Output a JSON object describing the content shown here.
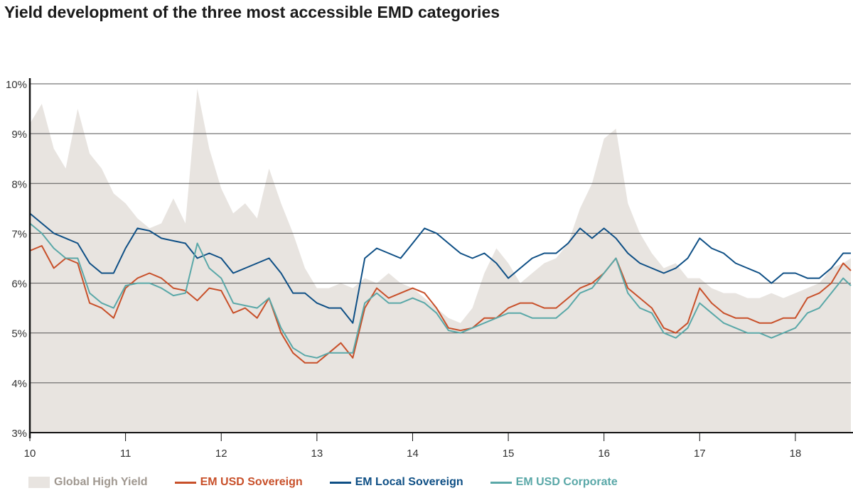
{
  "chart_data": {
    "type": "line",
    "title": "Yield development of the three most accessible EMD categories",
    "xlabel": "",
    "ylabel": "",
    "xlim": [
      10,
      18.58
    ],
    "ylim": [
      3,
      10
    ],
    "x_ticks": [
      "10",
      "11",
      "12",
      "13",
      "14",
      "15",
      "16",
      "17",
      "18"
    ],
    "y_ticks": [
      "3%",
      "4%",
      "5%",
      "6%",
      "7%",
      "8%",
      "9%",
      "10%"
    ],
    "grid": "horizontal",
    "legend_placement": "bottom",
    "x": [
      10,
      10.125,
      10.25,
      10.375,
      10.5,
      10.625,
      10.75,
      10.875,
      11,
      11.125,
      11.25,
      11.375,
      11.5,
      11.625,
      11.75,
      11.875,
      12,
      12.125,
      12.25,
      12.375,
      12.5,
      12.625,
      12.75,
      12.875,
      13,
      13.125,
      13.25,
      13.375,
      13.5,
      13.625,
      13.75,
      13.875,
      14,
      14.125,
      14.25,
      14.375,
      14.5,
      14.625,
      14.75,
      14.875,
      15,
      15.125,
      15.25,
      15.375,
      15.5,
      15.625,
      15.75,
      15.875,
      16,
      16.125,
      16.25,
      16.375,
      16.5,
      16.625,
      16.75,
      16.875,
      17,
      17.125,
      17.25,
      17.375,
      17.5,
      17.625,
      17.75,
      17.875,
      18,
      18.125,
      18.25,
      18.375,
      18.5,
      18.58
    ],
    "series": [
      {
        "name": "Global High Yield",
        "style": "area",
        "color": "#e8e4e0",
        "text_color": "#a09890",
        "values": [
          9.2,
          9.6,
          8.7,
          8.3,
          9.5,
          8.6,
          8.3,
          7.8,
          7.6,
          7.3,
          7.1,
          7.2,
          7.7,
          7.2,
          9.9,
          8.7,
          7.9,
          7.4,
          7.6,
          7.3,
          8.3,
          7.6,
          7.0,
          6.3,
          5.9,
          5.9,
          6.0,
          5.9,
          6.1,
          6.0,
          6.2,
          6.0,
          5.9,
          5.7,
          5.5,
          5.3,
          5.2,
          5.5,
          6.2,
          6.7,
          6.4,
          6.0,
          6.2,
          6.4,
          6.5,
          6.8,
          7.5,
          8.0,
          8.9,
          9.1,
          7.6,
          7.0,
          6.6,
          6.3,
          6.4,
          6.1,
          6.1,
          5.9,
          5.8,
          5.8,
          5.7,
          5.7,
          5.8,
          5.7,
          5.8,
          5.9,
          6.0,
          6.3,
          6.4,
          6.5
        ]
      },
      {
        "name": "EM USD Sovereign",
        "style": "line",
        "color": "#c8502a",
        "values": [
          6.65,
          6.75,
          6.3,
          6.5,
          6.4,
          5.6,
          5.5,
          5.3,
          5.9,
          6.1,
          6.2,
          6.1,
          5.9,
          5.85,
          5.65,
          5.9,
          5.85,
          5.4,
          5.5,
          5.3,
          5.7,
          5.0,
          4.6,
          4.4,
          4.4,
          4.6,
          4.8,
          4.5,
          5.5,
          5.9,
          5.7,
          5.8,
          5.9,
          5.8,
          5.5,
          5.1,
          5.05,
          5.1,
          5.3,
          5.3,
          5.5,
          5.6,
          5.6,
          5.5,
          5.5,
          5.7,
          5.9,
          6.0,
          6.2,
          6.5,
          5.9,
          5.7,
          5.5,
          5.1,
          5.0,
          5.2,
          5.9,
          5.6,
          5.4,
          5.3,
          5.3,
          5.2,
          5.2,
          5.3,
          5.3,
          5.7,
          5.8,
          6.0,
          6.4,
          6.25
        ]
      },
      {
        "name": "EM Local Sovereign",
        "style": "line",
        "color": "#0e4f85",
        "values": [
          7.4,
          7.2,
          7.0,
          6.9,
          6.8,
          6.4,
          6.2,
          6.2,
          6.7,
          7.1,
          7.05,
          6.9,
          6.85,
          6.8,
          6.5,
          6.6,
          6.5,
          6.2,
          6.3,
          6.4,
          6.5,
          6.2,
          5.8,
          5.8,
          5.6,
          5.5,
          5.5,
          5.2,
          6.5,
          6.7,
          6.6,
          6.5,
          6.8,
          7.1,
          7.0,
          6.8,
          6.6,
          6.5,
          6.6,
          6.4,
          6.1,
          6.3,
          6.5,
          6.6,
          6.6,
          6.8,
          7.1,
          6.9,
          7.1,
          6.9,
          6.6,
          6.4,
          6.3,
          6.2,
          6.3,
          6.5,
          6.9,
          6.7,
          6.6,
          6.4,
          6.3,
          6.2,
          6.0,
          6.2,
          6.2,
          6.1,
          6.1,
          6.3,
          6.6,
          6.6
        ]
      },
      {
        "name": "EM USD Corporate",
        "style": "line",
        "color": "#5aa8a8",
        "values": [
          7.2,
          7.0,
          6.7,
          6.5,
          6.5,
          5.8,
          5.6,
          5.5,
          5.95,
          6.0,
          6.0,
          5.9,
          5.75,
          5.8,
          6.8,
          6.3,
          6.1,
          5.6,
          5.55,
          5.5,
          5.7,
          5.1,
          4.7,
          4.55,
          4.5,
          4.6,
          4.6,
          4.6,
          5.6,
          5.8,
          5.6,
          5.6,
          5.7,
          5.6,
          5.4,
          5.05,
          5.0,
          5.1,
          5.2,
          5.3,
          5.4,
          5.4,
          5.3,
          5.3,
          5.3,
          5.5,
          5.8,
          5.9,
          6.2,
          6.5,
          5.8,
          5.5,
          5.4,
          5.0,
          4.9,
          5.1,
          5.6,
          5.4,
          5.2,
          5.1,
          5.0,
          5.0,
          4.9,
          5.0,
          5.1,
          5.4,
          5.5,
          5.8,
          6.1,
          5.95
        ]
      }
    ]
  }
}
